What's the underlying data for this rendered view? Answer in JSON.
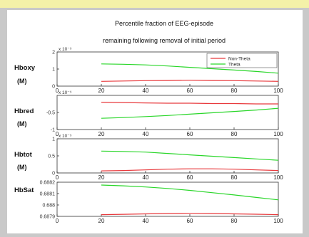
{
  "colors": {
    "non_theta": "#e8393c",
    "theta": "#29d629",
    "frame": "#c9c9c9",
    "banner": "#f4f1a8"
  },
  "chart_data": [
    {
      "type": "line",
      "title": "Percentile fraction of EEG-episode",
      "subtitle": "remaining following removal of initial period",
      "ylabel": "Hboxy",
      "unit": "(M)",
      "exponent": "x 10⁻⁹",
      "xlim": [
        0,
        100
      ],
      "ylim": [
        0,
        2
      ],
      "yticks": [
        "2",
        "1",
        "0"
      ],
      "xticks": [
        "0",
        "20",
        "40",
        "60",
        "80",
        "100"
      ],
      "legend": [
        "Non-Theta",
        "Theta"
      ],
      "legend_position": "top-right",
      "x": [
        20,
        30,
        40,
        50,
        60,
        70,
        80,
        90,
        100
      ],
      "series": [
        {
          "name": "Non-Theta",
          "values": [
            0.28,
            0.3,
            0.32,
            0.33,
            0.34,
            0.33,
            0.32,
            0.3,
            0.28
          ]
        },
        {
          "name": "Theta",
          "values": [
            1.3,
            1.28,
            1.24,
            1.18,
            1.1,
            1.02,
            0.94,
            0.86,
            0.76
          ]
        }
      ]
    },
    {
      "type": "line",
      "ylabel": "Hbred",
      "unit": "(M)",
      "exponent": "x 10⁻⁹",
      "xlim": [
        0,
        100
      ],
      "ylim": [
        -1,
        0
      ],
      "yticks": [
        "-0.5",
        "-1"
      ],
      "xticks": [
        "0",
        "20",
        "40",
        "60",
        "80",
        "100"
      ],
      "x": [
        20,
        30,
        40,
        50,
        60,
        70,
        80,
        90,
        100
      ],
      "series": [
        {
          "name": "Non-Theta",
          "values": [
            -0.2,
            -0.21,
            -0.22,
            -0.23,
            -0.23,
            -0.24,
            -0.24,
            -0.25,
            -0.25
          ]
        },
        {
          "name": "Theta",
          "values": [
            -0.67,
            -0.65,
            -0.62,
            -0.59,
            -0.55,
            -0.51,
            -0.47,
            -0.43,
            -0.38
          ]
        }
      ]
    },
    {
      "type": "line",
      "ylabel": "Hbtot",
      "unit": "(M)",
      "exponent": "x 10⁻⁹",
      "xlim": [
        0,
        100
      ],
      "ylim": [
        0,
        1
      ],
      "yticks": [
        "1",
        "0.5",
        "0"
      ],
      "xticks": [
        "0",
        "20",
        "40",
        "60",
        "80",
        "100"
      ],
      "x": [
        20,
        30,
        40,
        50,
        60,
        70,
        80,
        90,
        100
      ],
      "series": [
        {
          "name": "Non-Theta",
          "values": [
            0.06,
            0.07,
            0.09,
            0.11,
            0.12,
            0.12,
            0.11,
            0.09,
            0.07
          ]
        },
        {
          "name": "Theta",
          "values": [
            0.64,
            0.63,
            0.61,
            0.57,
            0.53,
            0.49,
            0.45,
            0.41,
            0.37
          ]
        }
      ]
    },
    {
      "type": "line",
      "ylabel": "HbSat",
      "xlim": [
        0,
        100
      ],
      "ylim": [
        0.6879,
        0.6882
      ],
      "yticks": [
        "0.6882",
        "0.6881",
        "0.688",
        "0.6879"
      ],
      "xticks": [
        "0",
        "20",
        "40",
        "60",
        "80",
        "100"
      ],
      "x": [
        20,
        30,
        40,
        50,
        60,
        70,
        80,
        90,
        100
      ],
      "series": [
        {
          "name": "Non-Theta",
          "values": [
            0.687915,
            0.687918,
            0.687922,
            0.687925,
            0.687926,
            0.687925,
            0.687922,
            0.687919,
            0.687915
          ]
        },
        {
          "name": "Theta",
          "values": [
            0.688175,
            0.688168,
            0.688158,
            0.688145,
            0.688128,
            0.688108,
            0.688088,
            0.688066,
            0.688045
          ]
        }
      ]
    }
  ]
}
